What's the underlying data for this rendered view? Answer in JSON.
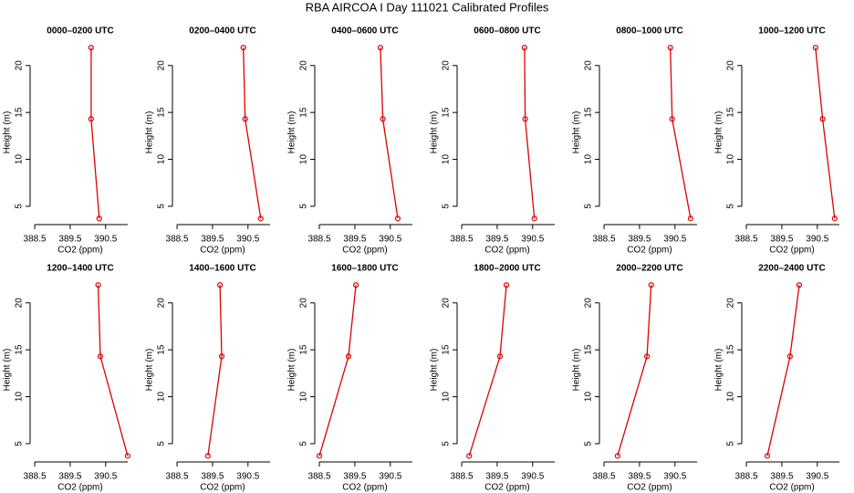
{
  "title": "RBA AIRCOA I  Day 111021  Calibrated Profiles",
  "chart_data": [
    {
      "type": "line",
      "title": "0000–0200 UTC",
      "x": [
        390.32,
        390.09,
        390.09
      ],
      "y": [
        3.7,
        14.3,
        21.9
      ],
      "xlabel": "CO2 (ppm)",
      "ylabel": "Height (m)",
      "color": "#dd0000",
      "xlim": [
        388.37,
        391.2
      ],
      "ylim": [
        3.05,
        22.7
      ],
      "xticks": [
        388.5,
        389.5,
        390.5
      ],
      "yticks": [
        5,
        10,
        15,
        20
      ]
    },
    {
      "type": "line",
      "title": "0200–0400 UTC",
      "x": [
        390.86,
        390.42,
        390.37
      ],
      "y": [
        3.7,
        14.3,
        21.9
      ],
      "xlabel": "CO2 (ppm)",
      "ylabel": "Height (m)",
      "color": "#dd0000",
      "xlim": [
        388.37,
        391.2
      ],
      "ylim": [
        3.05,
        22.7
      ],
      "xticks": [
        388.5,
        389.5,
        390.5
      ],
      "yticks": [
        5,
        10,
        15,
        20
      ]
    },
    {
      "type": "line",
      "title": "0400–0600 UTC",
      "x": [
        390.71,
        390.29,
        390.22
      ],
      "y": [
        3.7,
        14.3,
        21.9
      ],
      "xlabel": "CO2 (ppm)",
      "ylabel": "Height (m)",
      "color": "#dd0000",
      "xlim": [
        388.37,
        391.2
      ],
      "ylim": [
        3.05,
        22.7
      ],
      "xticks": [
        388.5,
        389.5,
        390.5
      ],
      "yticks": [
        5,
        10,
        15,
        20
      ]
    },
    {
      "type": "line",
      "title": "0600–0800 UTC",
      "x": [
        390.55,
        390.29,
        390.27
      ],
      "y": [
        3.7,
        14.3,
        21.9
      ],
      "xlabel": "CO2 (ppm)",
      "ylabel": "Height (m)",
      "color": "#dd0000",
      "xlim": [
        388.37,
        391.2
      ],
      "ylim": [
        3.05,
        22.7
      ],
      "xticks": [
        388.5,
        389.5,
        390.5
      ],
      "yticks": [
        5,
        10,
        15,
        20
      ]
    },
    {
      "type": "line",
      "title": "0800–1000 UTC",
      "x": [
        390.94,
        390.42,
        390.37
      ],
      "y": [
        3.7,
        14.3,
        21.9
      ],
      "xlabel": "CO2 (ppm)",
      "ylabel": "Height (m)",
      "color": "#dd0000",
      "xlim": [
        388.37,
        391.2
      ],
      "ylim": [
        3.05,
        22.7
      ],
      "xticks": [
        388.5,
        389.5,
        390.5
      ],
      "yticks": [
        5,
        10,
        15,
        20
      ]
    },
    {
      "type": "line",
      "title": "1000–1200 UTC",
      "x": [
        390.99,
        390.65,
        390.45
      ],
      "y": [
        3.7,
        14.3,
        21.9
      ],
      "xlabel": "CO2 (ppm)",
      "ylabel": "Height (m)",
      "color": "#dd0000",
      "xlim": [
        388.37,
        391.2
      ],
      "ylim": [
        3.05,
        22.7
      ],
      "xticks": [
        388.5,
        389.5,
        390.5
      ],
      "yticks": [
        5,
        10,
        15,
        20
      ]
    },
    {
      "type": "line",
      "title": "1200–1400 UTC",
      "x": [
        391.12,
        390.35,
        390.29
      ],
      "y": [
        3.7,
        14.3,
        21.9
      ],
      "xlabel": "CO2 (ppm)",
      "ylabel": "Height (m)",
      "color": "#dd0000",
      "xlim": [
        388.37,
        391.2
      ],
      "ylim": [
        3.05,
        22.7
      ],
      "xticks": [
        388.5,
        389.5,
        390.5
      ],
      "yticks": [
        5,
        10,
        15,
        20
      ]
    },
    {
      "type": "line",
      "title": "1400–1600 UTC",
      "x": [
        389.37,
        389.76,
        389.71
      ],
      "y": [
        3.7,
        14.3,
        21.9
      ],
      "xlabel": "CO2 (ppm)",
      "ylabel": "Height (m)",
      "color": "#dd0000",
      "xlim": [
        388.37,
        391.2
      ],
      "ylim": [
        3.05,
        22.7
      ],
      "xticks": [
        388.5,
        389.5,
        390.5
      ],
      "yticks": [
        5,
        10,
        15,
        20
      ]
    },
    {
      "type": "line",
      "title": "1600–1800 UTC",
      "x": [
        388.5,
        389.32,
        389.53
      ],
      "y": [
        3.7,
        14.3,
        21.9
      ],
      "xlabel": "CO2 (ppm)",
      "ylabel": "Height (m)",
      "color": "#dd0000",
      "xlim": [
        388.37,
        391.2
      ],
      "ylim": [
        3.05,
        22.7
      ],
      "xticks": [
        388.5,
        389.5,
        390.5
      ],
      "yticks": [
        5,
        10,
        15,
        20
      ]
    },
    {
      "type": "line",
      "title": "1800–2000 UTC",
      "x": [
        388.71,
        389.58,
        389.76
      ],
      "y": [
        3.7,
        14.3,
        21.9
      ],
      "xlabel": "CO2 (ppm)",
      "ylabel": "Height (m)",
      "color": "#dd0000",
      "xlim": [
        388.37,
        391.2
      ],
      "ylim": [
        3.05,
        22.7
      ],
      "xticks": [
        388.5,
        389.5,
        390.5
      ],
      "yticks": [
        5,
        10,
        15,
        20
      ]
    },
    {
      "type": "line",
      "title": "2000–2200 UTC",
      "x": [
        388.88,
        389.71,
        389.83
      ],
      "y": [
        3.7,
        14.3,
        21.9
      ],
      "xlabel": "CO2 (ppm)",
      "ylabel": "Height (m)",
      "color": "#dd0000",
      "xlim": [
        388.37,
        391.2
      ],
      "ylim": [
        3.05,
        22.7
      ],
      "xticks": [
        388.5,
        389.5,
        390.5
      ],
      "yticks": [
        5,
        10,
        15,
        20
      ]
    },
    {
      "type": "line",
      "title": "2200–2400 UTC",
      "x": [
        389.09,
        389.73,
        389.99
      ],
      "y": [
        3.7,
        14.3,
        21.9
      ],
      "xlabel": "CO2 (ppm)",
      "ylabel": "Height (m)",
      "color": "#dd0000",
      "xlim": [
        388.37,
        391.2
      ],
      "ylim": [
        3.05,
        22.7
      ],
      "xticks": [
        388.5,
        389.5,
        390.5
      ],
      "yticks": [
        5,
        10,
        15,
        20
      ]
    }
  ]
}
